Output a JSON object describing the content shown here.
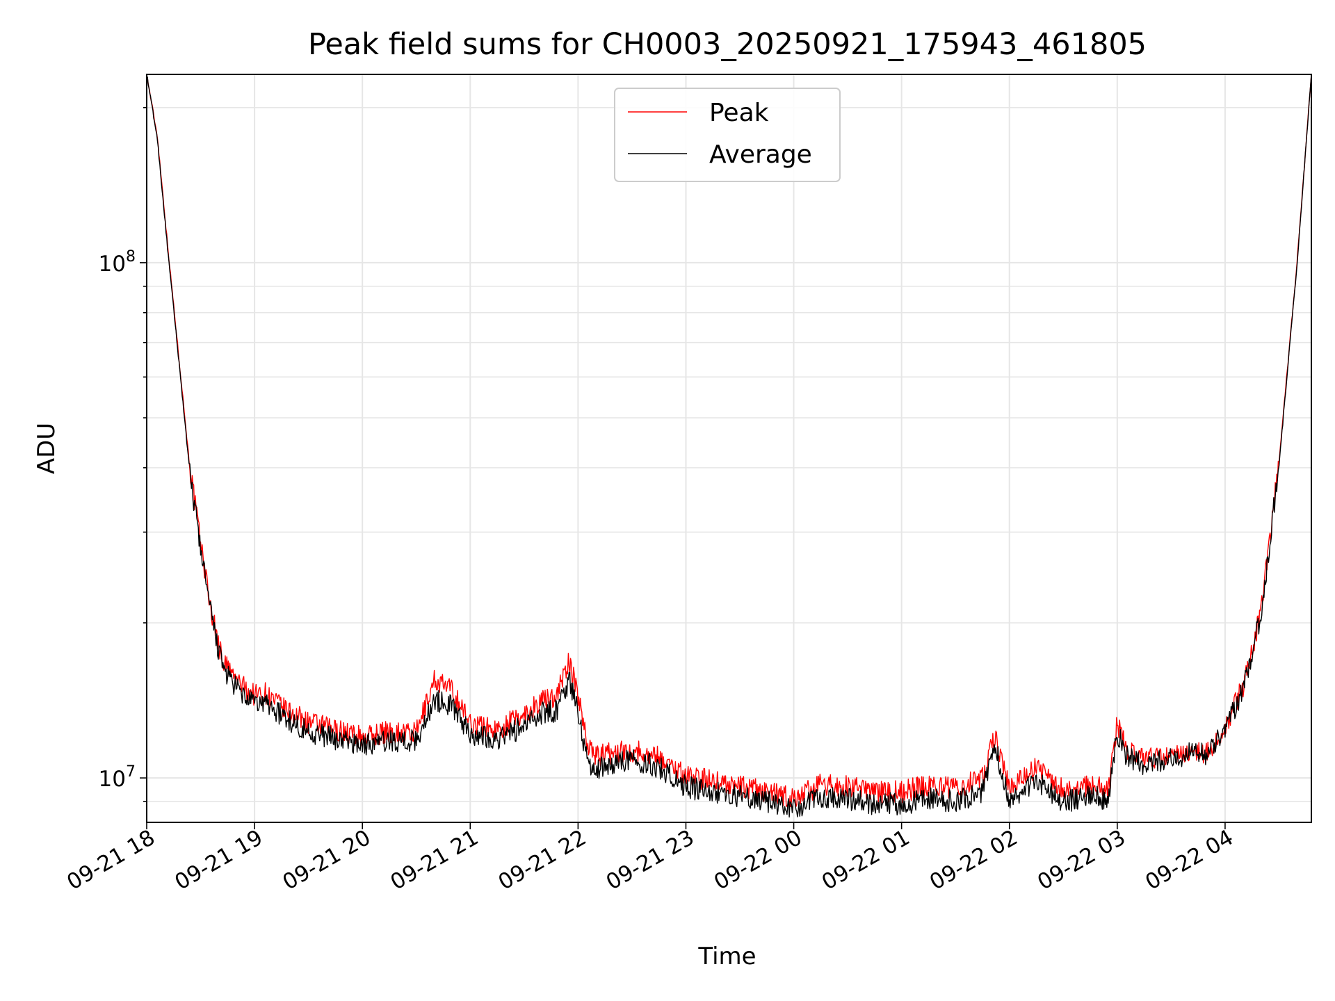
{
  "chart_data": {
    "type": "line",
    "title": "Peak field sums for CH0003_20250921_175943_461805",
    "xlabel": "Time",
    "ylabel": "ADU",
    "x_scale": "time",
    "y_scale": "log",
    "xlim": [
      "2025-09-21 18:00",
      "2025-09-22 04:48"
    ],
    "ylim": [
      8200000,
      232000000
    ],
    "grid": true,
    "legend_position": "top-center",
    "x_ticks": [
      "09-21 18",
      "09-21 19",
      "09-21 20",
      "09-21 21",
      "09-21 22",
      "09-21 23",
      "09-22 00",
      "09-22 01",
      "09-22 02",
      "09-22 03",
      "09-22 04"
    ],
    "y_major_ticks": [
      {
        "value": 10000000,
        "base": "10",
        "exp": "7"
      },
      {
        "value": 100000000,
        "base": "10",
        "exp": "8"
      }
    ],
    "x": [
      "2025-09-21 18:00",
      "2025-09-21 18:06",
      "2025-09-21 18:12",
      "2025-09-21 18:18",
      "2025-09-21 18:24",
      "2025-09-21 18:30",
      "2025-09-21 18:36",
      "2025-09-21 18:42",
      "2025-09-21 18:48",
      "2025-09-21 18:54",
      "2025-09-21 19:00",
      "2025-09-21 19:06",
      "2025-09-21 19:12",
      "2025-09-21 19:18",
      "2025-09-21 19:30",
      "2025-09-21 19:45",
      "2025-09-21 20:00",
      "2025-09-21 20:15",
      "2025-09-21 20:30",
      "2025-09-21 20:40",
      "2025-09-21 20:50",
      "2025-09-21 21:00",
      "2025-09-21 21:15",
      "2025-09-21 21:30",
      "2025-09-21 21:40",
      "2025-09-21 21:48",
      "2025-09-21 21:55",
      "2025-09-21 22:00",
      "2025-09-21 22:05",
      "2025-09-21 22:10",
      "2025-09-21 22:20",
      "2025-09-21 22:30",
      "2025-09-21 22:45",
      "2025-09-21 23:00",
      "2025-09-21 23:15",
      "2025-09-21 23:30",
      "2025-09-21 23:45",
      "2025-09-22 00:00",
      "2025-09-22 00:15",
      "2025-09-22 00:30",
      "2025-09-22 00:45",
      "2025-09-22 01:00",
      "2025-09-22 01:15",
      "2025-09-22 01:30",
      "2025-09-22 01:45",
      "2025-09-22 01:52",
      "2025-09-22 02:00",
      "2025-09-22 02:15",
      "2025-09-22 02:30",
      "2025-09-22 02:45",
      "2025-09-22 02:55",
      "2025-09-22 03:00",
      "2025-09-22 03:06",
      "2025-09-22 03:15",
      "2025-09-22 03:30",
      "2025-09-22 03:45",
      "2025-09-22 03:50",
      "2025-09-22 04:00",
      "2025-09-22 04:10",
      "2025-09-22 04:20",
      "2025-09-22 04:30",
      "2025-09-22 04:40",
      "2025-09-22 04:48"
    ],
    "series": [
      {
        "name": "Peak",
        "color": "#ff0000",
        "values": [
          232000000,
          175000000,
          105000000,
          65000000,
          40000000,
          28500000,
          21000000,
          17000000,
          15800000,
          15000000,
          14500000,
          14600000,
          14000000,
          13500000,
          12800000,
          12400000,
          12000000,
          12300000,
          12200000,
          15500000,
          14800000,
          12800000,
          12400000,
          13300000,
          14100000,
          14500000,
          16800000,
          14500000,
          11800000,
          11000000,
          11200000,
          11300000,
          11000000,
          10100000,
          9900000,
          9600000,
          9400000,
          9100000,
          9700000,
          9600000,
          9400000,
          9400000,
          9700000,
          9500000,
          10000000,
          12100000,
          9600000,
          10500000,
          9500000,
          9700000,
          9500000,
          12800000,
          11200000,
          10800000,
          11100000,
          11400000,
          11100000,
          12600000,
          15000000,
          21000000,
          41000000,
          100000000,
          232000000
        ]
      },
      {
        "name": "Average",
        "color": "#000000",
        "values": [
          232000000,
          173000000,
          103000000,
          64000000,
          39000000,
          28000000,
          20500000,
          16500000,
          15200000,
          14400000,
          13900000,
          14000000,
          13500000,
          13000000,
          12300000,
          11900000,
          11600000,
          11800000,
          11800000,
          14200000,
          13800000,
          12200000,
          11900000,
          12600000,
          13400000,
          13500000,
          15500000,
          13500000,
          10800000,
          10400000,
          10700000,
          10900000,
          10500000,
          9600000,
          9400000,
          9200000,
          9000000,
          8700000,
          9200000,
          9100000,
          8900000,
          8900000,
          9100000,
          9000000,
          9400000,
          11500000,
          9100000,
          9900000,
          9000000,
          9200000,
          9100000,
          12200000,
          10900000,
          10600000,
          10900000,
          11300000,
          11000000,
          12400000,
          14800000,
          20800000,
          40500000,
          99000000,
          232000000
        ]
      }
    ]
  }
}
